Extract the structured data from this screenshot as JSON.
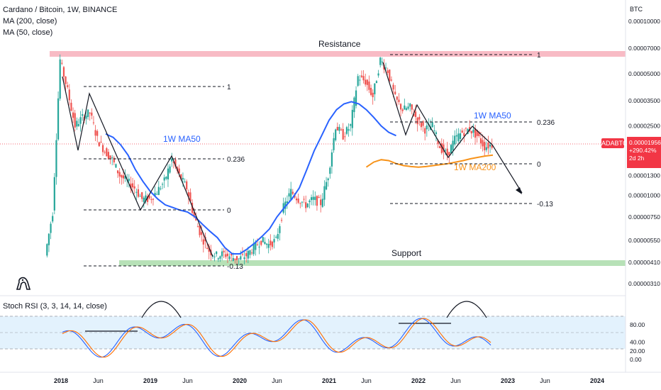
{
  "header": {
    "title": "Cardano / Bitcoin, 1W, BINANCE",
    "indicator_1": "MA (200, close)",
    "indicator_2": "MA (50, close)",
    "stoch_label": "Stoch RSI (3, 3, 14, 14, close)"
  },
  "price_scale": {
    "unit": "BTC",
    "ticks": [
      "0.00010000",
      "0.00007000",
      "0.00005000",
      "0.00003500",
      "0.00002500",
      "0.00001800",
      "0.00001300",
      "0.00001000",
      "0.00000750",
      "0.00000550",
      "0.00000410",
      "0.00000310"
    ],
    "current_symbol": "ADABTC",
    "current_price": "0.00001956",
    "change": "+290.42%",
    "countdown": "2d 2h"
  },
  "stoch_scale": {
    "ticks": [
      "80.00",
      "40.00",
      "20.00",
      "0.00"
    ]
  },
  "time_axis": [
    "2018",
    "Jun",
    "2019",
    "Jun",
    "2020",
    "Jun",
    "2021",
    "Jun",
    "2022",
    "Jun",
    "2023",
    "Jun",
    "2024"
  ],
  "annotations": {
    "resistance": "Resistance",
    "support": "Support",
    "ma50_left": "1W MA50",
    "ma50_right": "1W MA50",
    "ma200": "1W MA200",
    "fib_left": [
      "1",
      "0.236",
      "0",
      "-0.13"
    ],
    "fib_right": [
      "1",
      "0.236",
      "0",
      "-0.13"
    ]
  },
  "colors": {
    "up": "#26a69a",
    "down": "#ef5350",
    "ma50": "#2962ff",
    "ma200": "#f7931a",
    "resistance_zone": "#f8bbc5",
    "support_zone": "#b7e1b7",
    "stoch_k": "#2962ff",
    "stoch_d": "#ff6d00",
    "stoch_band": "#e3f2fd",
    "price_tag": "#f23645"
  },
  "chart_data": {
    "type": "candlestick",
    "scale": "log",
    "ylim": [
      3.1e-06,
      0.0001
    ],
    "x": [
      "2017-11",
      "2017-12",
      "2018-01",
      "2018-02",
      "2018-03",
      "2018-04",
      "2018-05",
      "2018-06",
      "2018-07",
      "2018-08",
      "2018-09",
      "2018-10",
      "2018-11",
      "2018-12",
      "2019-01",
      "2019-02",
      "2019-03",
      "2019-04",
      "2019-05",
      "2019-06",
      "2019-07",
      "2019-08",
      "2019-09",
      "2019-10",
      "2019-11",
      "2019-12",
      "2020-01",
      "2020-02",
      "2020-03",
      "2020-04",
      "2020-05",
      "2020-06",
      "2020-07",
      "2020-08",
      "2020-09",
      "2020-10",
      "2020-11",
      "2020-12",
      "2021-01",
      "2021-02",
      "2021-03",
      "2021-04",
      "2021-05",
      "2021-06",
      "2021-07",
      "2021-08",
      "2021-09",
      "2021-10",
      "2021-11",
      "2021-12",
      "2022-01",
      "2022-02",
      "2022-03",
      "2022-04",
      "2022-05",
      "2022-06",
      "2022-07",
      "2022-08",
      "2022-09",
      "2022-10",
      "2022-11"
    ],
    "close": [
      4.5e-06,
      8e-06,
      6e-05,
      4e-05,
      2.5e-05,
      2.8e-05,
      3e-05,
      2.1e-05,
      1.8e-05,
      1.6e-05,
      1.3e-05,
      1.2e-05,
      1.1e-05,
      9.5e-06,
      9.5e-06,
      1.05e-05,
      1.2e-05,
      1.6e-05,
      1.3e-05,
      1.1e-05,
      7.5e-06,
      5.8e-06,
      4.8e-06,
      4.5e-06,
      4.6e-06,
      4.4e-06,
      4.3e-06,
      4.5e-06,
      5e-06,
      5.5e-06,
      5.2e-06,
      5.5e-06,
      8.5e-06,
      1.05e-05,
      9.5e-06,
      8.8e-06,
      9.5e-06,
      9e-06,
      1.3e-05,
      2.5e-05,
      2.2e-05,
      2.5e-05,
      4.8e-05,
      4.5e-05,
      3.7e-05,
      6e-05,
      5.2e-05,
      3.6e-05,
      3.1e-05,
      3.2e-05,
      2.7e-05,
      2.4e-05,
      2.5e-05,
      1.9e-05,
      1.7e-05,
      2.1e-05,
      2.3e-05,
      2.4e-05,
      2.2e-05,
      1.9e-05,
      1.956e-05
    ],
    "ma50": {
      "from": "2018-07",
      "values": [
        2.25e-05,
        2.15e-05,
        1.95e-05,
        1.7e-05,
        1.4e-05,
        1.2e-05,
        1.05e-05,
        9.5e-06,
        8.8e-06,
        8.5e-06,
        8.2e-06,
        8e-06,
        7.5e-06,
        6.8e-06,
        6.2e-06,
        5.7e-06,
        5e-06,
        4.6e-06,
        4.6e-06,
        4.9e-06,
        5.3e-06,
        5.8e-06,
        6.4e-06,
        7.5e-06,
        8.5e-06,
        9.5e-06,
        1.1e-05,
        1.4e-05,
        1.8e-05,
        2.2e-05,
        2.7e-05,
        3.1e-05,
        3.35e-05,
        3.45e-05,
        3.35e-05,
        3.1e-05,
        2.8e-05,
        2.5e-05,
        2.3e-05,
        2.2e-05
      ]
    },
    "ma200": {
      "from": "2021-06",
      "values": [
        1.45e-05,
        1.55e-05,
        1.6e-05,
        1.58e-05,
        1.52e-05,
        1.48e-05,
        1.46e-05,
        1.45e-05,
        1.46e-05,
        1.48e-05,
        1.5e-05,
        1.52e-05,
        1.55e-05,
        1.58e-05,
        1.62e-05,
        1.65e-05,
        1.68e-05,
        1.7e-05
      ]
    },
    "stoch_rsi": {
      "k_range": [
        0,
        100
      ],
      "levels": [
        80,
        50,
        20
      ]
    }
  }
}
